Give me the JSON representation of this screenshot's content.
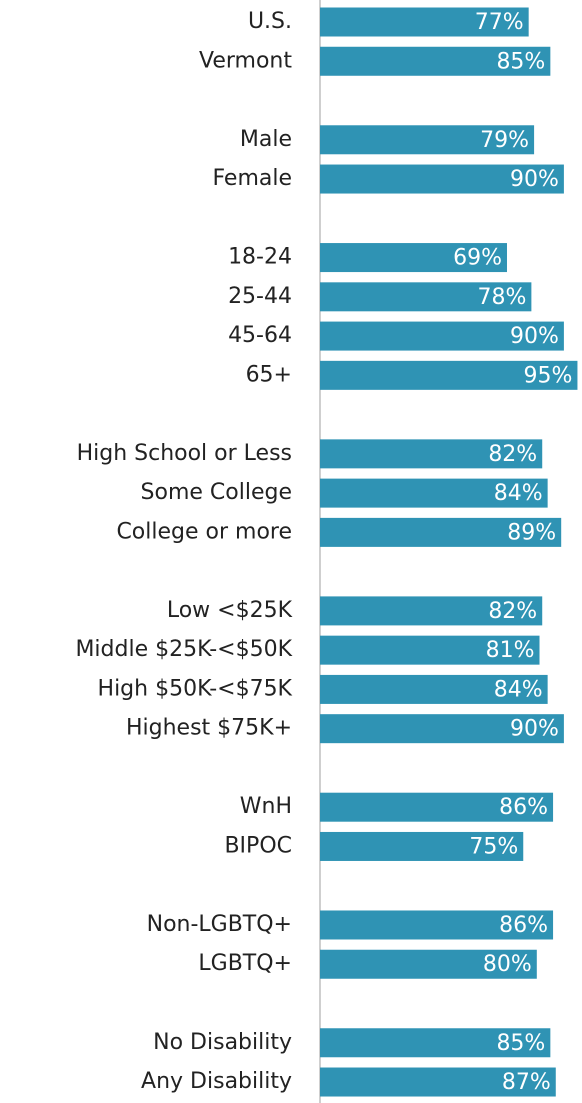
{
  "chart_data": {
    "type": "bar",
    "orientation": "horizontal",
    "color": "#2f93b4",
    "categories": [
      "U.S.",
      "Vermont",
      null,
      "Male",
      "Female",
      null,
      "18-24",
      "25-44",
      "45-64",
      "65+",
      null,
      "High School or Less",
      "Some College",
      "College or more",
      null,
      "Low <$25K",
      "Middle $25K-<$50K",
      "High $50K-<$75K",
      "Highest $75K+",
      null,
      "WnH",
      "BIPOC",
      null,
      "Non-LGBTQ+",
      "LGBTQ+",
      null,
      "No Disability",
      "Any Disability"
    ],
    "values": [
      77,
      85,
      null,
      79,
      90,
      null,
      69,
      78,
      90,
      95,
      null,
      82,
      84,
      89,
      null,
      82,
      81,
      84,
      90,
      null,
      86,
      75,
      null,
      86,
      80,
      null,
      85,
      87
    ],
    "value_labels": [
      "77%",
      "85%",
      null,
      "79%",
      "90%",
      null,
      "69%",
      "78%",
      "90%",
      "95%",
      null,
      "82%",
      "84%",
      "89%",
      null,
      "82%",
      "81%",
      "84%",
      "90%",
      null,
      "86%",
      "75%",
      null,
      "86%",
      "80%",
      null,
      "85%",
      "87%"
    ]
  }
}
